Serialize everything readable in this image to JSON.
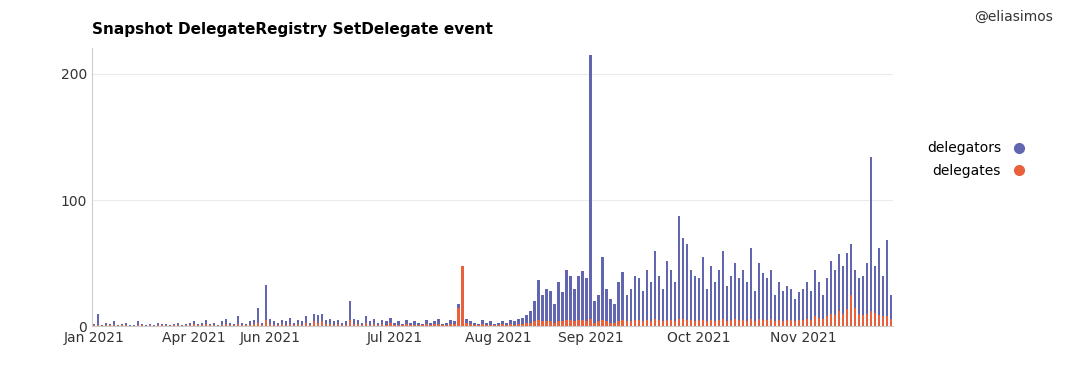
{
  "chart_data": {
    "type": "bar",
    "title": "Snapshot DelegateRegistry SetDelegate event",
    "annotations": [
      "@eliasimos"
    ],
    "categories": [
      "Jan 2021",
      null,
      null,
      null,
      null,
      null,
      null,
      null,
      null,
      null,
      null,
      null,
      null,
      null,
      null,
      null,
      null,
      null,
      null,
      null,
      null,
      null,
      null,
      null,
      null,
      "Apr 2021",
      null,
      null,
      null,
      null,
      null,
      null,
      null,
      null,
      null,
      null,
      null,
      null,
      null,
      null,
      null,
      null,
      null,
      null,
      "Jun 2021",
      null,
      null,
      null,
      null,
      null,
      null,
      null,
      null,
      null,
      null,
      null,
      null,
      null,
      null,
      null,
      null,
      null,
      null,
      null,
      null,
      null,
      null,
      null,
      null,
      null,
      null,
      null,
      null,
      null,
      null,
      "Jul 2021",
      null,
      null,
      null,
      null,
      null,
      null,
      null,
      null,
      null,
      null,
      null,
      null,
      null,
      null,
      null,
      null,
      null,
      null,
      null,
      null,
      null,
      null,
      null,
      null,
      null,
      "Aug 2021",
      null,
      null,
      null,
      null,
      null,
      null,
      null,
      null,
      null,
      null,
      null,
      null,
      null,
      null,
      null,
      null,
      null,
      null,
      null,
      null,
      null,
      null,
      "Sep 2021",
      null,
      null,
      null,
      null,
      null,
      null,
      null,
      null,
      null,
      null,
      null,
      null,
      null,
      null,
      null,
      null,
      null,
      null,
      null,
      null,
      null,
      null,
      null,
      null,
      null,
      null,
      "Oct 2021",
      null,
      null,
      null,
      null,
      null,
      null,
      null,
      null,
      null,
      null,
      null,
      null,
      null,
      null,
      null,
      null,
      null,
      null,
      null,
      null,
      null,
      null,
      null,
      null,
      null,
      "Nov 2021",
      null,
      null,
      null,
      null,
      null,
      null,
      null,
      null,
      null,
      null,
      null,
      null,
      null,
      null,
      null,
      null,
      null,
      null,
      null,
      null,
      null,
      null
    ],
    "series": [
      {
        "name": "delegators",
        "color": "#6266b0",
        "values": [
          2,
          10,
          1,
          3,
          2,
          4,
          1,
          2,
          3,
          1,
          1,
          4,
          2,
          1,
          2,
          1,
          3,
          2,
          2,
          1,
          2,
          3,
          1,
          2,
          3,
          4,
          2,
          3,
          5,
          2,
          3,
          1,
          4,
          6,
          3,
          2,
          8,
          3,
          2,
          4,
          5,
          15,
          3,
          33,
          6,
          4,
          3,
          5,
          4,
          7,
          3,
          5,
          4,
          8,
          3,
          10,
          9,
          10,
          5,
          6,
          4,
          5,
          3,
          4,
          20,
          6,
          5,
          3,
          8,
          4,
          6,
          3,
          5,
          4,
          7,
          3,
          4,
          2,
          5,
          3,
          4,
          3,
          2,
          5,
          3,
          4,
          6,
          2,
          3,
          5,
          4,
          18,
          47,
          6,
          4,
          3,
          2,
          5,
          3,
          4,
          2,
          3,
          4,
          3,
          5,
          4,
          6,
          7,
          9,
          12,
          20,
          37,
          25,
          30,
          28,
          18,
          35,
          27,
          45,
          40,
          30,
          40,
          44,
          38,
          215,
          20,
          25,
          55,
          30,
          22,
          18,
          35,
          43,
          25,
          30,
          40,
          38,
          28,
          45,
          35,
          60,
          40,
          30,
          52,
          45,
          35,
          87,
          70,
          65,
          45,
          40,
          38,
          55,
          30,
          48,
          35,
          45,
          60,
          32,
          40,
          50,
          38,
          45,
          35,
          62,
          28,
          50,
          42,
          38,
          45,
          25,
          35,
          28,
          32,
          30,
          22,
          27,
          30,
          35,
          28,
          45,
          35,
          25,
          38,
          52,
          45,
          57,
          48,
          58,
          65,
          45,
          38,
          40,
          50,
          134,
          48,
          62,
          40,
          68,
          25
        ]
      },
      {
        "name": "delegates",
        "color": "#e8613c",
        "values": [
          1,
          1,
          0,
          1,
          1,
          1,
          0,
          1,
          1,
          0,
          0,
          1,
          1,
          0,
          1,
          0,
          1,
          1,
          1,
          0,
          1,
          1,
          0,
          1,
          1,
          2,
          1,
          1,
          2,
          1,
          1,
          0,
          1,
          2,
          1,
          1,
          2,
          1,
          1,
          1,
          2,
          3,
          1,
          5,
          2,
          1,
          1,
          2,
          1,
          2,
          1,
          2,
          1,
          3,
          1,
          4,
          3,
          4,
          2,
          2,
          1,
          2,
          1,
          1,
          5,
          2,
          2,
          1,
          3,
          1,
          2,
          1,
          2,
          1,
          3,
          1,
          1,
          1,
          2,
          1,
          1,
          1,
          1,
          2,
          1,
          2,
          2,
          1,
          1,
          2,
          2,
          15,
          48,
          3,
          2,
          1,
          1,
          2,
          1,
          1,
          1,
          1,
          2,
          1,
          2,
          1,
          2,
          2,
          3,
          3,
          4,
          5,
          4,
          4,
          4,
          3,
          4,
          4,
          5,
          5,
          4,
          5,
          5,
          4,
          6,
          3,
          4,
          5,
          4,
          3,
          3,
          4,
          5,
          4,
          4,
          5,
          5,
          4,
          5,
          4,
          6,
          5,
          4,
          5,
          5,
          4,
          6,
          6,
          5,
          5,
          4,
          5,
          5,
          4,
          5,
          4,
          5,
          6,
          4,
          5,
          6,
          5,
          5,
          4,
          6,
          4,
          6,
          5,
          5,
          6,
          4,
          5,
          4,
          5,
          5,
          4,
          5,
          5,
          6,
          5,
          8,
          7,
          6,
          8,
          10,
          9,
          12,
          10,
          14,
          25,
          15,
          10,
          9,
          10,
          12,
          11,
          9,
          8,
          8,
          6
        ]
      }
    ],
    "ylim": [
      0,
      220
    ],
    "yticks": [
      0,
      100,
      200
    ],
    "grid": true,
    "legend": "right"
  }
}
